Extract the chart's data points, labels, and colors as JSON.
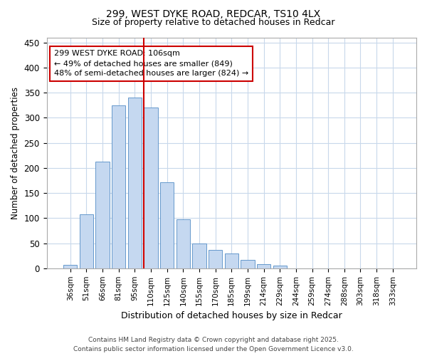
{
  "title1": "299, WEST DYKE ROAD, REDCAR, TS10 4LX",
  "title2": "Size of property relative to detached houses in Redcar",
  "xlabel": "Distribution of detached houses by size in Redcar",
  "ylabel": "Number of detached properties",
  "bar_color": "#c5d8f0",
  "bar_edge_color": "#6699cc",
  "grid_color": "#c8d8eb",
  "background_color": "#ffffff",
  "marker_color": "#cc0000",
  "categories": [
    "36sqm",
    "51sqm",
    "66sqm",
    "81sqm",
    "95sqm",
    "110sqm",
    "125sqm",
    "140sqm",
    "155sqm",
    "170sqm",
    "185sqm",
    "199sqm",
    "214sqm",
    "229sqm",
    "244sqm",
    "259sqm",
    "274sqm",
    "288sqm",
    "303sqm",
    "318sqm",
    "333sqm"
  ],
  "values": [
    7,
    107,
    212,
    325,
    340,
    320,
    172,
    98,
    50,
    37,
    30,
    17,
    8,
    5,
    0,
    0,
    0,
    0,
    0,
    0,
    0
  ],
  "ylim": [
    0,
    460
  ],
  "yticks": [
    0,
    50,
    100,
    150,
    200,
    250,
    300,
    350,
    400,
    450
  ],
  "annotation_line1": "299 WEST DYKE ROAD: 106sqm",
  "annotation_line2": "← 49% of detached houses are smaller (849)",
  "annotation_line3": "48% of semi-detached houses are larger (824) →",
  "footer1": "Contains HM Land Registry data © Crown copyright and database right 2025.",
  "footer2": "Contains public sector information licensed under the Open Government Licence v3.0.",
  "marker_bar_index": 5
}
